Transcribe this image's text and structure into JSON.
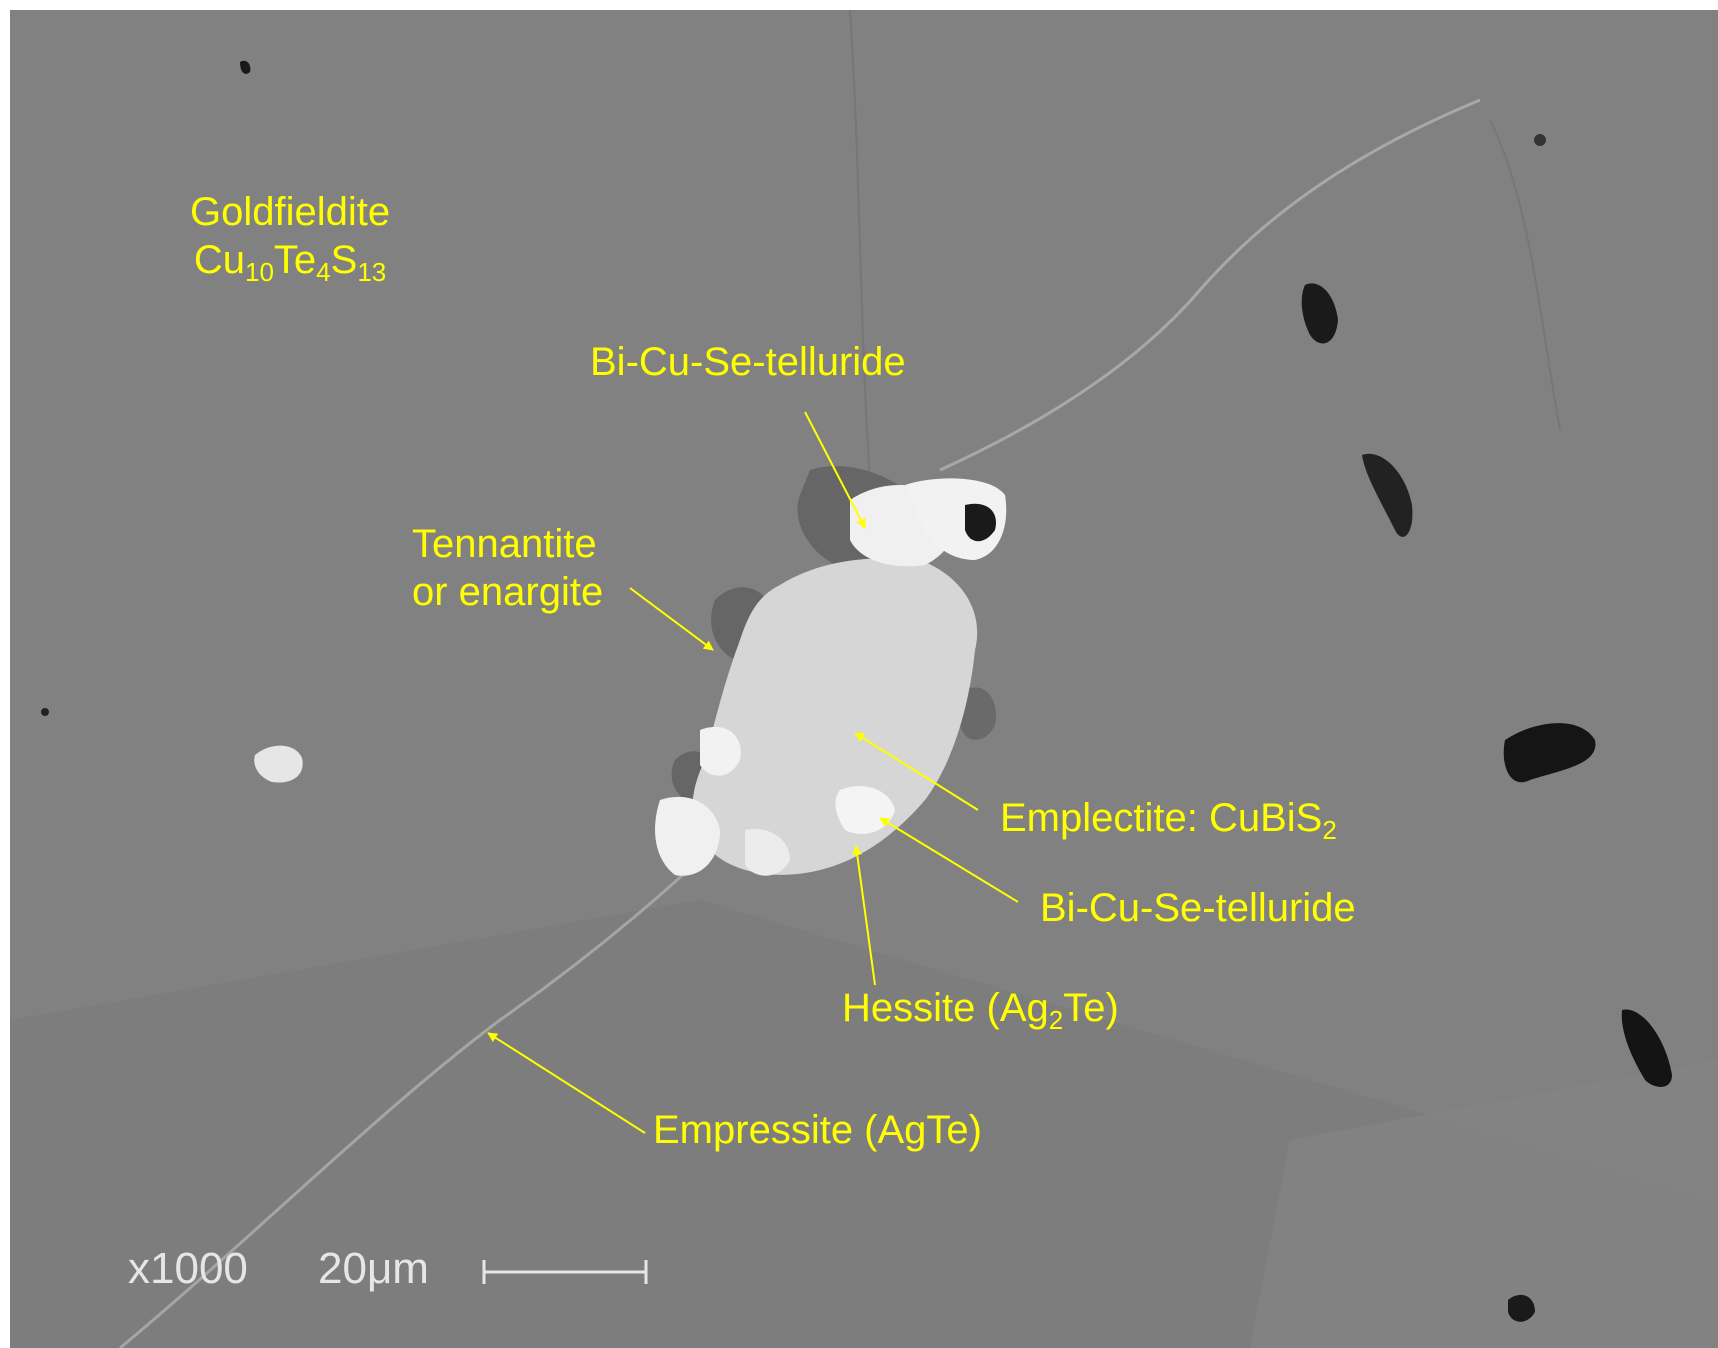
{
  "colors": {
    "label": "#ffff00",
    "matrix": "#818181",
    "grain": "#d6d6d6",
    "bright_grain": "#f2f2f2",
    "dark_rim": "#666666",
    "pore": "#1a1a1a",
    "scale_bar": "#e6e6e6",
    "border": "#ffffff"
  },
  "labels": {
    "goldfieldite": {
      "name": "Goldfieldite",
      "formula_a": "Cu",
      "sub_a": "10",
      "formula_b": "Te",
      "sub_b": "4",
      "formula_c": "S",
      "sub_c": "13"
    },
    "bicuse_top": {
      "text": "Bi-Cu-Se-telluride"
    },
    "tennantite": {
      "line1": "Tennantite",
      "line2": "or enargite"
    },
    "emplectite": {
      "text": "Emplectite: CuBiS",
      "sub": "2"
    },
    "bicuse_bottom": {
      "text": "Bi-Cu-Se-telluride"
    },
    "hessite": {
      "text_a": "Hessite (Ag",
      "sub": "2",
      "text_b": "Te)"
    },
    "empressite": {
      "text": "Empressite (AgTe)"
    }
  },
  "scale_bar": {
    "magnification": "x1000",
    "length_label": "20μm"
  }
}
